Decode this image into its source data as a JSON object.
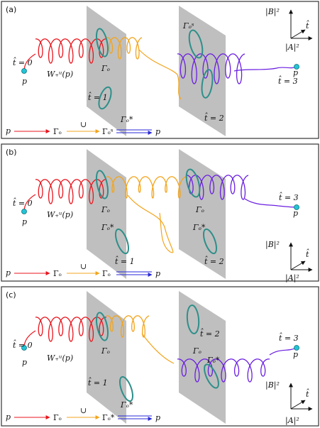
{
  "colors": {
    "red": "#e8141c",
    "orange": "#f2a41c",
    "purple": "#6a1ee0",
    "teal": "#2e8f8a",
    "point": "#22c4d6",
    "plane": "#9c9c9c"
  },
  "axes": {
    "y": "|B|²",
    "z": "t̂",
    "x": "|A|²"
  },
  "panels": [
    {
      "label": "(a)",
      "t0": "t̂ = 0",
      "p_left": "p",
      "manifold": "W₊ᵘ(p)",
      "gamma_o": "Γₒ",
      "t1": "t̂ = 1",
      "gamma_star1": "Γₒ*",
      "gamma_s": "Γₒˢ",
      "t2": "t̂ = 2",
      "t3": "t̂ = 3",
      "p_right": "p",
      "legend": {
        "p": "p",
        "g1": "Γₒ",
        "cup": "∪",
        "g2": "Γₒˢ",
        "p_end": "p"
      }
    },
    {
      "label": "(b)",
      "t0": "t̂ = 0",
      "p_left": "p",
      "manifold": "W₊ᵘ(p)",
      "gamma_o": "Γₒ",
      "t1": "t̂ = 1",
      "gamma_star1": "Γₒ*",
      "gamma_o2": "Γₒ",
      "gamma_star2": "Γₒ*",
      "t2": "t̂ = 2",
      "t3": "t̂ = 3",
      "p_right": "p",
      "legend": {
        "p": "p",
        "g1": "Γₒ",
        "cup": "∪",
        "g2": "Γₒ",
        "p_end": "p"
      }
    },
    {
      "label": "(c)",
      "t0": "t̂ = 0",
      "p_left": "p",
      "manifold": "W₊ᵘ(p)",
      "gamma_o": "Γₒ",
      "t1": "t̂ = 1",
      "gamma_star1": "Γₒ*",
      "t2": "t̂ = 2",
      "gamma_o2": "Γₒ",
      "gamma_star2": "Γₒ*",
      "t3": "t̂ = 3",
      "p_right": "p",
      "legend": {
        "p": "p",
        "g1": "Γₒ",
        "cup": "∪",
        "g2": "Γₒ*",
        "p_end": "p"
      }
    }
  ]
}
